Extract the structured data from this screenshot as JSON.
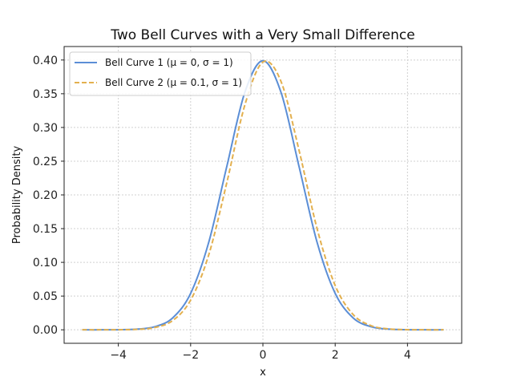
{
  "chart_data": {
    "type": "line",
    "title": "Two Bell Curves with a Very Small Difference",
    "xlabel": "x",
    "ylabel": "Probability Density",
    "xlim": [
      -5.5,
      5.5
    ],
    "ylim": [
      -0.02,
      0.42
    ],
    "xticks": [
      -4,
      -2,
      0,
      2,
      4
    ],
    "xtick_labels": [
      "−4",
      "−2",
      "0",
      "2",
      "4"
    ],
    "yticks": [
      0.0,
      0.05,
      0.1,
      0.15,
      0.2,
      0.25,
      0.3,
      0.35,
      0.4
    ],
    "ytick_labels": [
      "0.00",
      "0.05",
      "0.10",
      "0.15",
      "0.20",
      "0.25",
      "0.30",
      "0.35",
      "0.40"
    ],
    "grid": true,
    "legend_position": "top-left",
    "x": [
      -5,
      -4.5,
      -4,
      -3.5,
      -3,
      -2.5,
      -2,
      -1.5,
      -1,
      -0.5,
      0,
      0.5,
      1,
      1.5,
      2,
      2.5,
      3,
      3.5,
      4,
      4.5,
      5
    ],
    "series": [
      {
        "name": "Bell Curve 1 (μ = 0, σ = 1)",
        "color": "#5b8ed6",
        "style": "solid",
        "values": [
          0.0,
          0.0,
          0.0001,
          0.0009,
          0.0044,
          0.0175,
          0.054,
          0.1295,
          0.242,
          0.3521,
          0.3989,
          0.3521,
          0.242,
          0.1295,
          0.054,
          0.0175,
          0.0044,
          0.0009,
          0.0001,
          0.0,
          0.0
        ]
      },
      {
        "name": "Bell Curve 2 (μ = 0.1, σ = 1)",
        "color": "#e3b04e",
        "style": "dashed",
        "values": [
          0.0,
          0.0,
          0.0001,
          0.0006,
          0.0033,
          0.0136,
          0.044,
          0.1109,
          0.2179,
          0.3332,
          0.397,
          0.3683,
          0.2661,
          0.1497,
          0.0656,
          0.0224,
          0.006,
          0.0012,
          0.0002,
          0.0,
          0.0
        ]
      }
    ]
  }
}
